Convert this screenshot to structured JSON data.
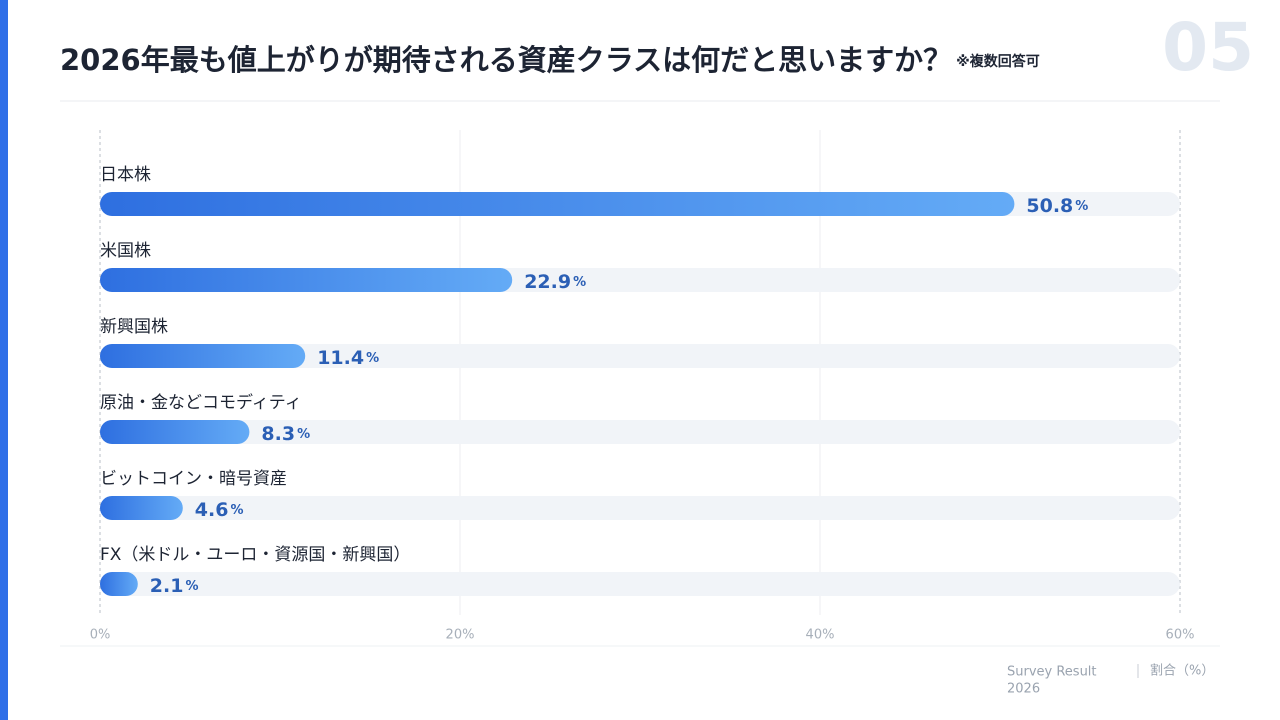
{
  "chart_data": {
    "type": "bar",
    "orientation": "horizontal",
    "page_number": "05",
    "title": "2026年最も値上がりが期待される資産クラスは何だと思いますか？",
    "subtitle": "※複数回答可",
    "categories": [
      "日本株",
      "米国株",
      "新興国株",
      "原油・金などコモディティ",
      "ビットコイン・暗号資産",
      "FX（米ドル・ユーロ・資源国・新興国）"
    ],
    "values": [
      50.8,
      22.9,
      11.4,
      8.3,
      4.6,
      2.1
    ],
    "value_unit": "%",
    "colors": [
      "#2e6fe0",
      "#64abf6"
    ],
    "xlim": [
      0,
      60
    ],
    "xticks": [
      {
        "value": 0,
        "label": "0%"
      },
      {
        "value": 20,
        "label": "20%"
      },
      {
        "value": 40,
        "label": "40%"
      },
      {
        "value": 60,
        "label": "60%"
      }
    ],
    "grid": true,
    "source": [
      "Survey Result",
      "2026"
    ],
    "x_axis_label": "割合（%）"
  }
}
